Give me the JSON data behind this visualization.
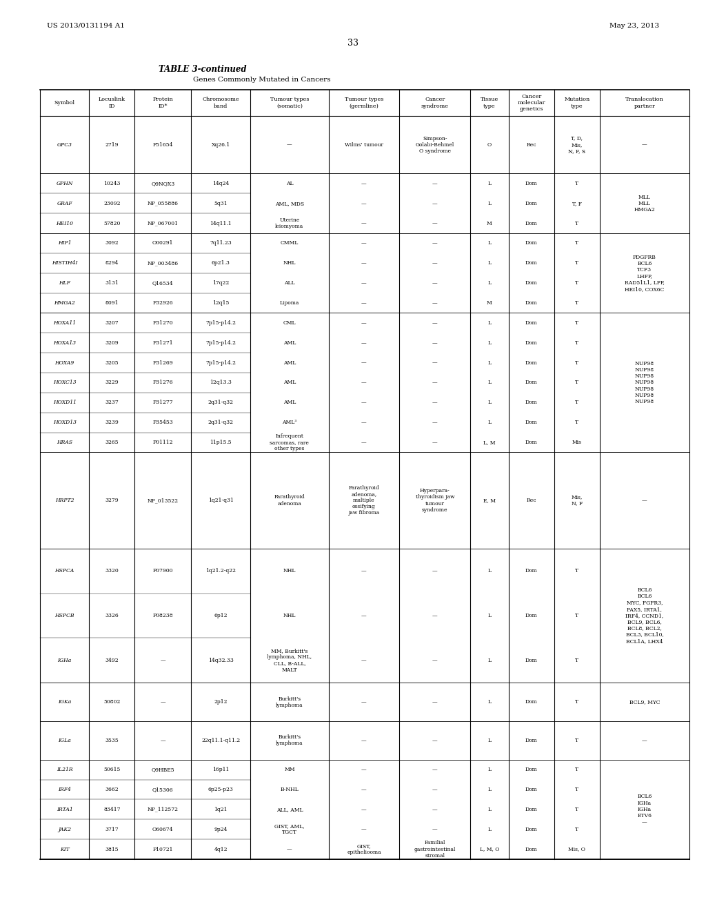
{
  "page_header_left": "US 2013/0131194 A1",
  "page_header_right": "May 23, 2013",
  "page_number": "33",
  "table_title": "TABLE 3-continued",
  "table_subtitle": "Genes Commonly Mutated in Cancers",
  "columns": [
    "Symbol",
    "Locuslink\nID",
    "Protein\nID*",
    "Chromosome\nband",
    "Tumour types\n(somatic)",
    "Tumour types\n(germline)",
    "Cancer\nsyndrome",
    "Tissue\ntype",
    "Cancer\nmolecular\ngenetics",
    "Mutation\ntype"
  ],
  "row_groups": [
    {
      "symbols": [
        "GPC3"
      ],
      "locus_ids": [
        "2719"
      ],
      "protein_ids": [
        "P51654"
      ],
      "chrom_bands": [
        "Xq26.1"
      ],
      "tumour_somatic": [
        "—"
      ],
      "tumour_germline": [
        "Wilms' tumour"
      ],
      "cancer_syndrome": [
        "Simpson-\nGolabi-Behmel\nO syndrome"
      ],
      "tissue_type": [
        "O"
      ],
      "cancer_mol": [
        "Rec"
      ],
      "mutation_type": [
        "T, D,\nMis,\nN, F, S"
      ]
    },
    {
      "symbols": [
        "GPHN",
        "GRAF",
        "HEI10"
      ],
      "locus_ids": [
        "10243",
        "23092",
        "57820"
      ],
      "protein_ids": [
        "Q9NQX3",
        "NP_055886",
        "NP_067001"
      ],
      "chrom_bands": [
        "14q24",
        "5q31",
        "14q11.1"
      ],
      "tumour_somatic": [
        "AL",
        "AML, MDS",
        "Uterine\nleiomyoma"
      ],
      "tumour_germline": [
        "—",
        "—",
        "—"
      ],
      "cancer_syndrome": [
        "—",
        "—",
        "—"
      ],
      "tissue_type": [
        "L",
        "L",
        "M"
      ],
      "cancer_mol": [
        "Dom",
        "Dom",
        "Dom"
      ],
      "mutation_type": [
        "T",
        "T, F",
        "T"
      ]
    },
    {
      "symbols": [
        "HIP1",
        "HISTIH4I",
        "HLF",
        "HMGA2"
      ],
      "locus_ids": [
        "3092",
        "8294",
        "3131",
        "8091"
      ],
      "protein_ids": [
        "O00291",
        "NP_003486",
        "Q16534",
        "P32926"
      ],
      "chrom_bands": [
        "7q11.23",
        "6p21.3",
        "17q22",
        "12q15"
      ],
      "tumour_somatic": [
        "CMML",
        "NHL",
        "ALL",
        "Lipoma"
      ],
      "tumour_germline": [
        "—",
        "—",
        "—",
        "—"
      ],
      "cancer_syndrome": [
        "—",
        "—",
        "—",
        "—"
      ],
      "tissue_type": [
        "L",
        "L",
        "L",
        "M"
      ],
      "cancer_mol": [
        "Dom",
        "Dom",
        "Dom",
        "Dom"
      ],
      "mutation_type": [
        "T",
        "T",
        "T",
        "T"
      ]
    },
    {
      "symbols": [
        "HOXA11",
        "HOXA13",
        "HOXA9",
        "HOXC13",
        "HOXD11",
        "HOXD13",
        "HRAS"
      ],
      "locus_ids": [
        "3207",
        "3209",
        "3205",
        "3229",
        "3237",
        "3239",
        "3265"
      ],
      "protein_ids": [
        "P31270",
        "P31271",
        "P31269",
        "P31276",
        "P31277",
        "P35453",
        "P01112"
      ],
      "chrom_bands": [
        "7p15-p14.2",
        "7p15-p14.2",
        "7p15-p14.2",
        "12q13.3",
        "2q31-q32",
        "2q31-q32",
        "11p15.5"
      ],
      "tumour_somatic": [
        "CML",
        "AML",
        "AML",
        "AML",
        "AML",
        "AML³",
        "Infrequent\nsarcomas, rare\nother types"
      ],
      "tumour_germline": [
        "—",
        "—",
        "—",
        "—",
        "—",
        "—",
        "—"
      ],
      "cancer_syndrome": [
        "—",
        "—",
        "—",
        "—",
        "—",
        "—",
        "—"
      ],
      "tissue_type": [
        "L",
        "L",
        "L",
        "L",
        "L",
        "L",
        "L, M"
      ],
      "cancer_mol": [
        "Dom",
        "Dom",
        "Dom",
        "Dom",
        "Dom",
        "Dom",
        "Dom"
      ],
      "mutation_type": [
        "T",
        "T",
        "T",
        "T",
        "T",
        "T",
        "Mis"
      ]
    },
    {
      "symbols": [
        "HRPT2"
      ],
      "locus_ids": [
        "3279"
      ],
      "protein_ids": [
        "NP_013522"
      ],
      "chrom_bands": [
        "1q21-q31"
      ],
      "tumour_somatic": [
        "Parathyroid\nadenoma"
      ],
      "tumour_germline": [
        "Parathyroid\nadenoma,\nmultiple\nossifying\njaw fibroma"
      ],
      "cancer_syndrome": [
        "Hyperpara-\nthyroidism jaw\ntumour\nsyndrome"
      ],
      "tissue_type": [
        "E, M"
      ],
      "cancer_mol": [
        "Rec"
      ],
      "mutation_type": [
        "Mis,\nN, F"
      ]
    },
    {
      "symbols": [
        "HSPCA",
        "HSPCB",
        "IGHa"
      ],
      "locus_ids": [
        "3320",
        "3326",
        "3492"
      ],
      "protein_ids": [
        "P07900",
        "P08238",
        "—"
      ],
      "chrom_bands": [
        "1q21.2-q22",
        "6p12",
        "14q32.33"
      ],
      "tumour_somatic": [
        "NHL",
        "NHL",
        "MM, Burkitt's\nlymphoma, NHL,\nCLL, B-ALL,\nMALT"
      ],
      "tumour_germline": [
        "—",
        "—",
        "—"
      ],
      "cancer_syndrome": [
        "—",
        "—",
        "—"
      ],
      "tissue_type": [
        "L",
        "L",
        "L"
      ],
      "cancer_mol": [
        "Dom",
        "Dom",
        "Dom"
      ],
      "mutation_type": [
        "T",
        "T",
        "T"
      ]
    },
    {
      "symbols": [
        "IGKa"
      ],
      "locus_ids": [
        "50802"
      ],
      "protein_ids": [
        "—"
      ],
      "chrom_bands": [
        "2p12"
      ],
      "tumour_somatic": [
        "Burkitt's\nlymphoma"
      ],
      "tumour_germline": [
        "—"
      ],
      "cancer_syndrome": [
        "—"
      ],
      "tissue_type": [
        "L"
      ],
      "cancer_mol": [
        "Dom"
      ],
      "mutation_type": [
        "T"
      ]
    },
    {
      "symbols": [
        "IGLa"
      ],
      "locus_ids": [
        "3535"
      ],
      "protein_ids": [
        "—"
      ],
      "chrom_bands": [
        "22q11.1-q11.2"
      ],
      "tumour_somatic": [
        "Burkitt's\nlymphoma"
      ],
      "tumour_germline": [
        "—"
      ],
      "cancer_syndrome": [
        "—"
      ],
      "tissue_type": [
        "L"
      ],
      "cancer_mol": [
        "Dom"
      ],
      "mutation_type": [
        "T"
      ]
    },
    {
      "symbols": [
        "IL21R",
        "IRF4",
        "IRTA1",
        "JAK2",
        "KIT"
      ],
      "locus_ids": [
        "50615",
        "3662",
        "83417",
        "3717",
        "3815"
      ],
      "protein_ids": [
        "Q9HBE5",
        "Q15306",
        "NP_112572",
        "O60674",
        "P10721"
      ],
      "chrom_bands": [
        "16p11",
        "6p25-p23",
        "1q21",
        "9p24",
        "4q12"
      ],
      "tumour_somatic": [
        "MM",
        "B-NHL",
        "ALL, AML",
        "GIST, AML,\nTGCT",
        "—"
      ],
      "tumour_germline": [
        "—",
        "—",
        "—",
        "—",
        "GIST,\nepitheliooma"
      ],
      "cancer_syndrome": [
        "—",
        "—",
        "—",
        "—",
        "Familial\ngastrointestinal\nstromal"
      ],
      "tissue_type": [
        "L",
        "L",
        "L",
        "L",
        "L, M, O"
      ],
      "cancer_mol": [
        "Dom",
        "Dom",
        "Dom",
        "Dom",
        "Dom"
      ],
      "mutation_type": [
        "T",
        "T",
        "T",
        "T",
        "Mis, O"
      ]
    }
  ],
  "translocation_groups": [
    [
      "—"
    ],
    [
      "MLL",
      "MLL",
      "HMGA2"
    ],
    [
      "PDGFRB",
      "BCL6",
      "TCF3",
      "LHFP,\nRAD51L1, LPP,\nHEI10, COX6C"
    ],
    [
      "NUP98",
      "NUP98",
      "NUP98",
      "NUP98",
      "NUP98",
      "NUP98",
      "NUP98"
    ],
    [
      "—"
    ],
    [
      "BCL6",
      "BCL6",
      "MYC, FGFR3,\nPAX5, IRTA1,\nIRF4, CCND1,\nBCL9, BCL6,\nBCL8, BCL2,\nBCL3, BCL10,\nBCL1A, LHX4"
    ],
    [
      "BCL9, MYC"
    ],
    [
      "—"
    ],
    [
      "BCL6",
      "IGHa",
      "IGHa",
      "ETV6",
      "—"
    ]
  ],
  "background": "#ffffff",
  "text_color": "#000000",
  "line_color": "#000000"
}
